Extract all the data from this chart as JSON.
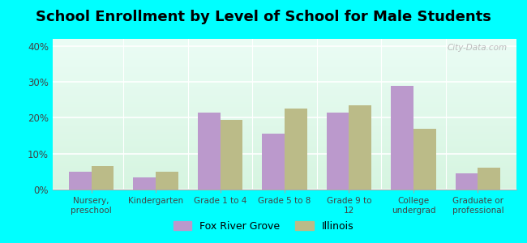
{
  "title": "School Enrollment by Level of School for Male Students",
  "categories": [
    "Nursery,\npreschool",
    "Kindergarten",
    "Grade 1 to 4",
    "Grade 5 to 8",
    "Grade 9 to\n12",
    "College\nundergrad",
    "Graduate or\nprofessional"
  ],
  "fox_river_grove": [
    5.0,
    3.5,
    21.5,
    15.5,
    21.5,
    29.0,
    4.5
  ],
  "illinois": [
    6.5,
    5.0,
    19.5,
    22.5,
    23.5,
    17.0,
    6.0
  ],
  "fox_color": "#bb99cc",
  "illinois_color": "#bbbb88",
  "background_outer": "#00ffff",
  "ylim": [
    0,
    42
  ],
  "yticks": [
    0,
    10,
    20,
    30,
    40
  ],
  "ytick_labels": [
    "0%",
    "10%",
    "20%",
    "30%",
    "40%"
  ],
  "title_fontsize": 13,
  "legend_label_fox": "Fox River Grove",
  "legend_label_il": "Illinois",
  "bar_width": 0.35,
  "watermark": "City-Data.com"
}
